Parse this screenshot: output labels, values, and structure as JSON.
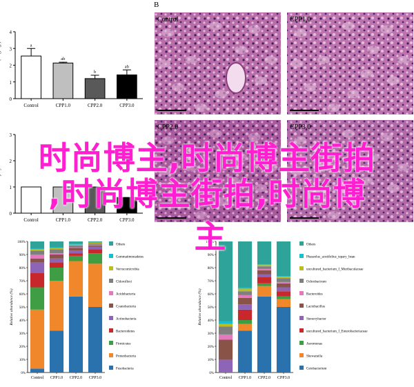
{
  "panel_labels": {
    "b": "B"
  },
  "micrographs": [
    {
      "label": "Control",
      "base": "#b86ca8",
      "light": "#e2b8d8"
    },
    {
      "label": "CPP1.0",
      "base": "#bd73ad",
      "light": "#e4bcda"
    },
    {
      "label": "CPP2.0",
      "base": "#a95a9c",
      "light": "#d9a6cf"
    },
    {
      "label": "CPP3.0",
      "base": "#b26aa7",
      "light": "#dfb3d6"
    }
  ],
  "watermark": {
    "line1": "时尚博主,时尚博主街拍",
    "line2": ",时尚博主街拍,时尚博",
    "line3": "主"
  },
  "chart_data": [
    {
      "type": "bar",
      "categories": [
        "Control",
        "CPP1.0",
        "CPP2.0",
        "CPP3.0"
      ],
      "values": [
        2.55,
        2.13,
        1.2,
        1.42
      ],
      "errors": [
        0.45,
        0.05,
        0.2,
        0.3
      ],
      "letters": [
        "a",
        "ab",
        "b",
        "ab"
      ],
      "colors": [
        "#ffffff",
        "#bfbfbf",
        "#595959",
        "#000000"
      ],
      "ylabel": "TAG of liver ( mg / g )",
      "ylim": [
        0,
        4
      ],
      "yticks": [
        "0",
        "1",
        "2",
        "3",
        "4"
      ]
    },
    {
      "type": "bar",
      "categories": [
        "Control",
        "CPP1.0",
        "CPP2.0",
        "CPP3.0"
      ],
      "values": [
        1.0,
        1.0,
        1.0,
        0.6
      ],
      "colors": [
        "#ffffff",
        "#bfbfbf",
        "#595959",
        "#000000"
      ],
      "ylabel": "Liver injury score",
      "ylim": [
        0,
        3
      ],
      "yticks": [
        "0",
        "1",
        "2",
        "3"
      ]
    },
    {
      "type": "bar",
      "stacked": true,
      "categories": [
        "Control",
        "CPP1.0",
        "CPP2.0",
        "CPP3.0"
      ],
      "ylabel": "Relative abundance (%)",
      "yticks": [
        "0%",
        "10%",
        "20%",
        "30%",
        "40%",
        "50%",
        "60%",
        "70%",
        "80%",
        "90%",
        "100%"
      ],
      "legend_position": "right",
      "series": [
        {
          "name": "Fusobacteria",
          "color": "#2a72ae",
          "values": [
            3,
            32,
            58,
            50
          ]
        },
        {
          "name": "Proteobacteria",
          "color": "#f0872b",
          "values": [
            45,
            38,
            27,
            33
          ]
        },
        {
          "name": "Firmicutes",
          "color": "#3f9e43",
          "values": [
            17,
            10,
            4,
            8
          ]
        },
        {
          "name": "Bacteroidetes",
          "color": "#c8282c",
          "values": [
            11,
            4,
            2,
            3
          ]
        },
        {
          "name": "Actinobacteria",
          "color": "#8e65b6",
          "values": [
            8,
            3,
            2,
            2
          ]
        },
        {
          "name": "Cyanobacteria",
          "color": "#8a5347",
          "values": [
            3,
            3,
            2,
            1
          ]
        },
        {
          "name": "Acidobacteria",
          "color": "#e579c0",
          "values": [
            3,
            1,
            0.5,
            0.5
          ]
        },
        {
          "name": "Chloroflexi",
          "color": "#7f7f7f",
          "values": [
            3,
            3,
            1.5,
            1
          ]
        },
        {
          "name": "Verrucomicrobia",
          "color": "#bcbd22",
          "values": [
            1,
            1,
            0.5,
            0.5
          ]
        },
        {
          "name": "Gemmatimonadetes",
          "color": "#17becf",
          "values": [
            0.5,
            0.5,
            0.5,
            0.5
          ]
        },
        {
          "name": "Others",
          "color": "#2ea39a",
          "values": [
            5.5,
            4.5,
            2,
            0.5
          ]
        }
      ]
    },
    {
      "type": "bar",
      "stacked": true,
      "categories": [
        "Control",
        "CPP1.0",
        "CPP2.0",
        "CPP3.0"
      ],
      "ylabel": "Relative abundance (%)",
      "yticks": [
        "0%",
        "10%",
        "20%",
        "30%",
        "40%",
        "50%",
        "60%",
        "70%",
        "80%",
        "90%",
        "100%"
      ],
      "legend_position": "right",
      "series": [
        {
          "name": "Cetobacterium",
          "color": "#2a72ae",
          "values": [
            0,
            32,
            58,
            50
          ]
        },
        {
          "name": "Shewanella",
          "color": "#f0872b",
          "values": [
            0,
            5,
            8,
            6
          ]
        },
        {
          "name": "Aeromonas",
          "color": "#3f9e43",
          "values": [
            0,
            3,
            2,
            2
          ]
        },
        {
          "name": "uncultured_bacterium_f_Enterobacteriaceae",
          "color": "#c8282c",
          "values": [
            0,
            8,
            5,
            4
          ]
        },
        {
          "name": "Stenoxybacter",
          "color": "#8e65b6",
          "values": [
            10,
            4,
            2,
            3
          ]
        },
        {
          "name": "Lactobacillus",
          "color": "#8a5347",
          "values": [
            15,
            5,
            3,
            3
          ]
        },
        {
          "name": "Bacteroides",
          "color": "#e579c0",
          "values": [
            4,
            2,
            1,
            1
          ]
        },
        {
          "name": "Ochrobactrum",
          "color": "#7f7f7f",
          "values": [
            6,
            3,
            2,
            3
          ]
        },
        {
          "name": "uncultured_bacterium_f_Muribaculaceae",
          "color": "#bcbd22",
          "values": [
            2,
            2,
            1,
            1
          ]
        },
        {
          "name": "Phaseolus_acutifolius_tepary_bean",
          "color": "#17becf",
          "values": [
            2,
            1,
            0.5,
            0.5
          ]
        },
        {
          "name": "Others",
          "color": "#2ea39a",
          "values": [
            61,
            35,
            17.5,
            26.5
          ]
        }
      ]
    }
  ]
}
